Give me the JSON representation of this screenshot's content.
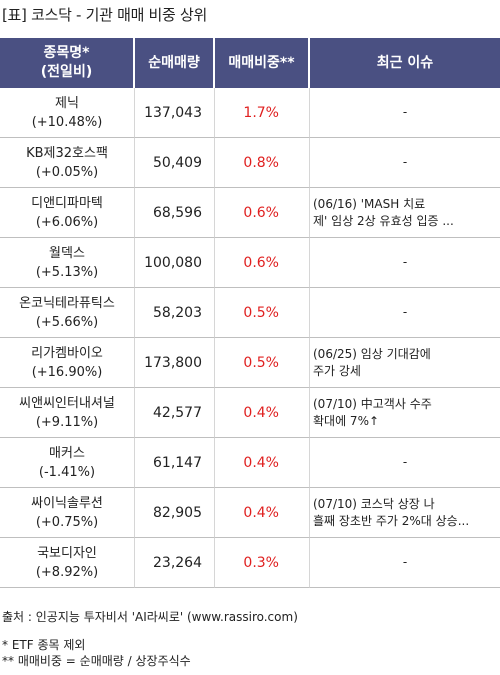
{
  "title": "[표] 코스닥 - 기관 매매 비중 상위",
  "headers": {
    "name": "종목명*",
    "name_sub": "(전일비)",
    "volume": "순매매량",
    "ratio": "매매비중**",
    "issue": "최근 이슈"
  },
  "rows": [
    {
      "name": "제닉",
      "change": "(+10.48%)",
      "volume": "137,043",
      "ratio": "1.7%",
      "issue_lines": [
        "-"
      ]
    },
    {
      "name": "KB제32호스팩",
      "change": "(+0.05%)",
      "volume": "50,409",
      "ratio": "0.8%",
      "issue_lines": [
        "-"
      ]
    },
    {
      "name": "디앤디파마텍",
      "change": "(+6.06%)",
      "volume": "68,596",
      "ratio": "0.6%",
      "issue_lines": [
        "(06/16) 'MASH 치료",
        "제' 임상 2상 유효성 입증 ..."
      ]
    },
    {
      "name": "월덱스",
      "change": "(+5.13%)",
      "volume": "100,080",
      "ratio": "0.6%",
      "issue_lines": [
        "-"
      ]
    },
    {
      "name": "온코닉테라퓨틱스",
      "change": "(+5.66%)",
      "volume": "58,203",
      "ratio": "0.5%",
      "issue_lines": [
        "-"
      ]
    },
    {
      "name": "리가켐바이오",
      "change": "(+16.90%)",
      "volume": "173,800",
      "ratio": "0.5%",
      "issue_lines": [
        "(06/25) 임상 기대감에",
        "주가 강세"
      ]
    },
    {
      "name": "씨앤씨인터내셔널",
      "change": "(+9.11%)",
      "volume": "42,577",
      "ratio": "0.4%",
      "issue_lines": [
        "(07/10) 中고객사 수주",
        "확대에 7%↑"
      ]
    },
    {
      "name": "매커스",
      "change": "(-1.41%)",
      "volume": "61,147",
      "ratio": "0.4%",
      "issue_lines": [
        "-"
      ]
    },
    {
      "name": "싸이닉솔루션",
      "change": "(+0.75%)",
      "volume": "82,905",
      "ratio": "0.4%",
      "issue_lines": [
        "(07/10) 코스닥 상장 나",
        "흘째 장초반 주가 2%대 상승..."
      ]
    },
    {
      "name": "국보디자인",
      "change": "(+8.92%)",
      "volume": "23,264",
      "ratio": "0.3%",
      "issue_lines": [
        "-"
      ]
    }
  ],
  "footer": {
    "source": "출처 : 인공지능 투자비서 'AI라씨로' (www.rassiro.com)",
    "note1": "* ETF 종목 제외",
    "note2": "** 매매비중 = 순매매량 / 상장주식수"
  },
  "colors": {
    "header_bg": "#4a5082",
    "ratio_text": "#e02020"
  }
}
